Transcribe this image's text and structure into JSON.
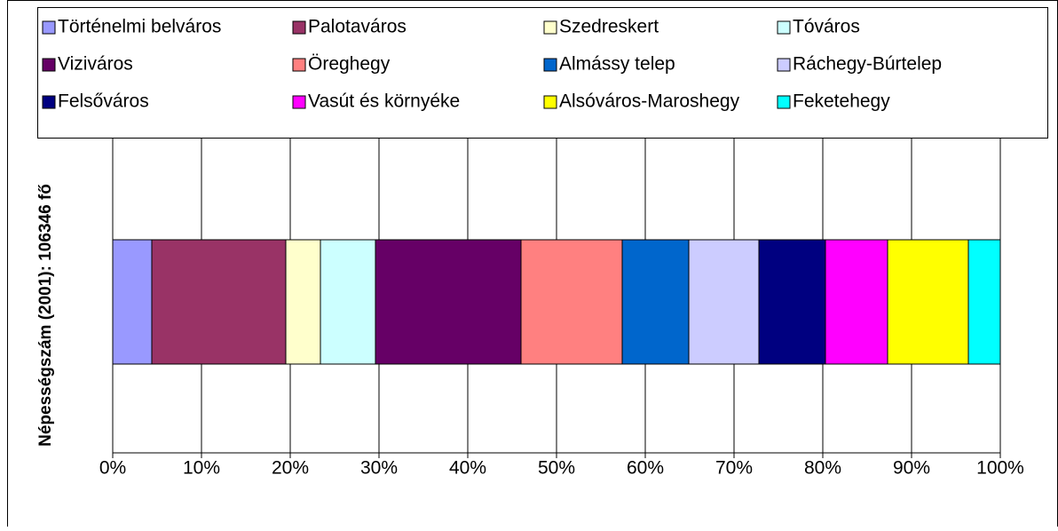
{
  "chart_data": {
    "type": "bar",
    "orientation": "horizontal",
    "stacked": true,
    "ylabel": "Népességszám (2001): 106346 fő",
    "series": [
      {
        "name": "Történelmi belváros",
        "color": "#9999ff",
        "values": [
          4.4
        ]
      },
      {
        "name": "Palotaváros",
        "color": "#993366",
        "values": [
          15.1
        ]
      },
      {
        "name": "Szedreskert",
        "color": "#ffffcc",
        "values": [
          3.9
        ]
      },
      {
        "name": "Tóváros",
        "color": "#ccffff",
        "values": [
          6.2
        ]
      },
      {
        "name": "Viziváros",
        "color": "#660066",
        "values": [
          16.4
        ]
      },
      {
        "name": "Öreghegy",
        "color": "#ff8080",
        "values": [
          11.4
        ]
      },
      {
        "name": "Almássy telep",
        "color": "#0066cc",
        "values": [
          7.5
        ]
      },
      {
        "name": "Ráchegy-Búrtelep",
        "color": "#ccccff",
        "values": [
          7.9
        ]
      },
      {
        "name": "Felsőváros",
        "color": "#000080",
        "values": [
          7.5
        ]
      },
      {
        "name": "Vasút és környéke",
        "color": "#ff00ff",
        "values": [
          7.0
        ]
      },
      {
        "name": "Alsóváros-Maroshegy",
        "color": "#ffff00",
        "values": [
          9.1
        ]
      },
      {
        "name": "Feketehegy",
        "color": "#00ffff",
        "values": [
          3.6
        ]
      }
    ],
    "xlim": [
      0,
      100
    ],
    "xticks": [
      {
        "value": 0,
        "label": "0%"
      },
      {
        "value": 10,
        "label": "10%"
      },
      {
        "value": 20,
        "label": "20%"
      },
      {
        "value": 30,
        "label": "30%"
      },
      {
        "value": 40,
        "label": "40%"
      },
      {
        "value": 50,
        "label": "50%"
      },
      {
        "value": 60,
        "label": "60%"
      },
      {
        "value": 70,
        "label": "70%"
      },
      {
        "value": 80,
        "label": "80%"
      },
      {
        "value": 90,
        "label": "90%"
      },
      {
        "value": 100,
        "label": "100%"
      }
    ],
    "grid": true,
    "legend": "top"
  }
}
